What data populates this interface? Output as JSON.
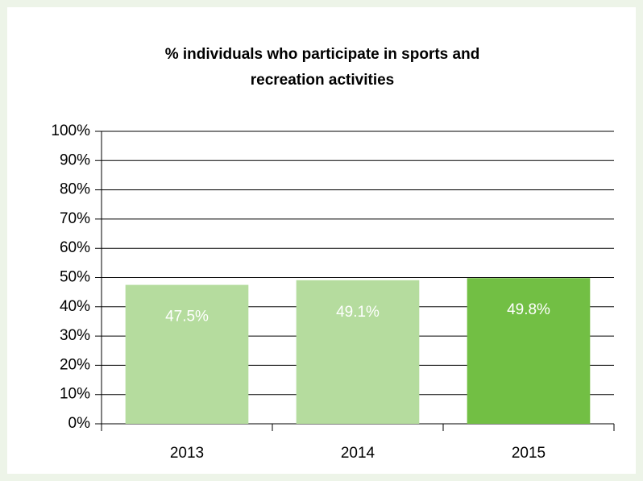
{
  "chart_data": {
    "type": "bar",
    "title": [
      "% individuals who participate in sports and",
      "recreation activities"
    ],
    "categories": [
      "2013",
      "2014",
      "2015"
    ],
    "values": [
      47.5,
      49.1,
      49.8
    ],
    "value_labels": [
      "47.5%",
      "49.1%",
      "49.8%"
    ],
    "colors": [
      "#b5dc9e",
      "#b5dc9e",
      "#72bf44"
    ],
    "ylim": [
      0,
      100
    ],
    "yticks": [
      {
        "value": 0,
        "label": "0%"
      },
      {
        "value": 10,
        "label": "10%"
      },
      {
        "value": 20,
        "label": "20%"
      },
      {
        "value": 30,
        "label": "30%"
      },
      {
        "value": 40,
        "label": "40%"
      },
      {
        "value": 50,
        "label": "50%"
      },
      {
        "value": 60,
        "label": "60%"
      },
      {
        "value": 70,
        "label": "70%"
      },
      {
        "value": 80,
        "label": "80%"
      },
      {
        "value": 90,
        "label": "90%"
      },
      {
        "value": 100,
        "label": "100%"
      }
    ],
    "grid": true
  }
}
